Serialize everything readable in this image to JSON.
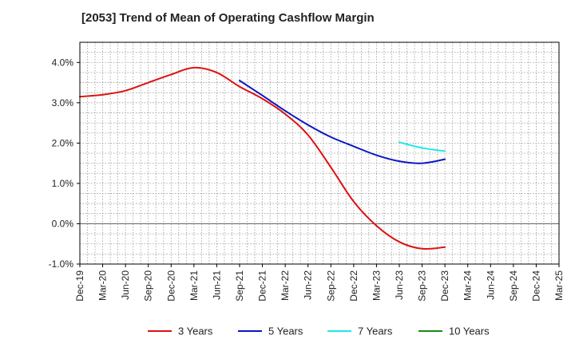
{
  "chart_data": {
    "type": "line",
    "title": "[2053]  Trend of Mean of Operating Cashflow Margin",
    "xlabel": "",
    "ylabel": "",
    "ylim": [
      -1.0,
      4.5
    ],
    "yticks": [
      -1.0,
      0.0,
      1.0,
      2.0,
      3.0,
      4.0
    ],
    "ytick_labels": [
      "-1.0%",
      "0.0%",
      "1.0%",
      "2.0%",
      "3.0%",
      "4.0%"
    ],
    "categories": [
      "Dec-19",
      "Mar-20",
      "Jun-20",
      "Sep-20",
      "Dec-20",
      "Mar-21",
      "Jun-21",
      "Sep-21",
      "Dec-21",
      "Mar-22",
      "Jun-22",
      "Sep-22",
      "Dec-22",
      "Mar-23",
      "Jun-23",
      "Sep-23",
      "Dec-23",
      "Mar-24",
      "Jun-24",
      "Sep-24",
      "Dec-24",
      "Mar-25"
    ],
    "grid": true,
    "legend_position": "bottom",
    "series": [
      {
        "name": "3 Years",
        "color": "#dd1111",
        "values": [
          3.15,
          3.2,
          3.3,
          3.5,
          3.7,
          3.87,
          3.75,
          3.4,
          3.1,
          2.72,
          2.2,
          1.4,
          0.55,
          -0.05,
          -0.45,
          -0.62,
          -0.58,
          null,
          null,
          null,
          null,
          null
        ]
      },
      {
        "name": "5 Years",
        "color": "#0b16c4",
        "values": [
          null,
          null,
          null,
          null,
          null,
          null,
          null,
          3.55,
          3.18,
          2.8,
          2.45,
          2.15,
          1.92,
          1.7,
          1.55,
          1.5,
          1.6,
          null,
          null,
          null,
          null,
          null
        ]
      },
      {
        "name": "7 Years",
        "color": "#22e6e6",
        "values": [
          null,
          null,
          null,
          null,
          null,
          null,
          null,
          null,
          null,
          null,
          null,
          null,
          null,
          null,
          2.02,
          1.88,
          1.8,
          null,
          null,
          null,
          null,
          null
        ]
      },
      {
        "name": "10 Years",
        "color": "#1a8a1a",
        "values": [
          null,
          null,
          null,
          null,
          null,
          null,
          null,
          null,
          null,
          null,
          null,
          null,
          null,
          null,
          null,
          null,
          null,
          null,
          null,
          null,
          null,
          null
        ]
      }
    ]
  }
}
